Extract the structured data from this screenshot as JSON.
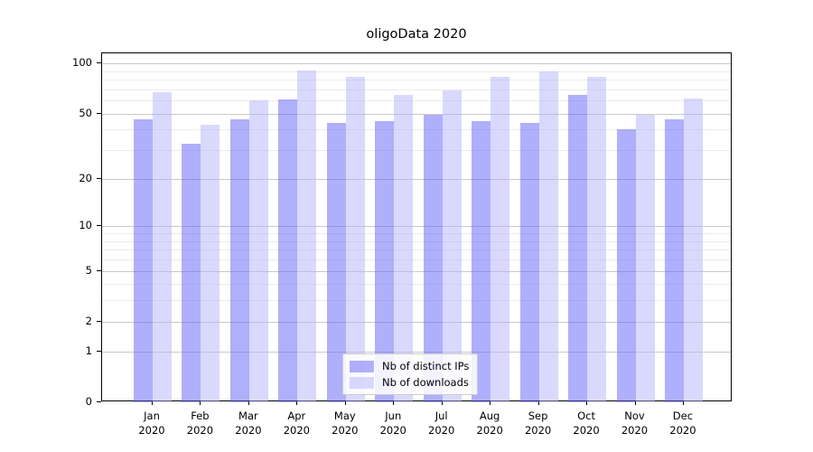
{
  "chart_data": {
    "type": "bar",
    "title": "oligoData 2020",
    "x_categories": [
      {
        "month": "Jan",
        "year": "2020"
      },
      {
        "month": "Feb",
        "year": "2020"
      },
      {
        "month": "Mar",
        "year": "2020"
      },
      {
        "month": "Apr",
        "year": "2020"
      },
      {
        "month": "May",
        "year": "2020"
      },
      {
        "month": "Jun",
        "year": "2020"
      },
      {
        "month": "Jul",
        "year": "2020"
      },
      {
        "month": "Aug",
        "year": "2020"
      },
      {
        "month": "Sep",
        "year": "2020"
      },
      {
        "month": "Oct",
        "year": "2020"
      },
      {
        "month": "Nov",
        "year": "2020"
      },
      {
        "month": "Dec",
        "year": "2020"
      }
    ],
    "series": [
      {
        "name": "Nb of distinct IPs",
        "color": "rgba(95,95,250,0.5)",
        "hex_on_white": "#aaaafa",
        "values": [
          46,
          33,
          46,
          61,
          44,
          45,
          49,
          45,
          44,
          65,
          40,
          46
        ]
      },
      {
        "name": "Nb of downloads",
        "color": "rgba(180,180,252,0.5)",
        "hex_on_white": "#dadafd",
        "values": [
          67,
          43,
          60,
          91,
          83,
          65,
          69,
          83,
          90,
          83,
          49,
          62
        ]
      }
    ],
    "y_axis": {
      "scale": "log1p",
      "major_ticks": [
        0,
        1,
        2,
        5,
        10,
        20,
        50,
        100
      ],
      "minor_gridlines": [
        3,
        4,
        6,
        7,
        8,
        9,
        30,
        40,
        60,
        70,
        80,
        90
      ],
      "top_value": 115
    },
    "grid": "on",
    "legend": {
      "position": "lower center",
      "entries": [
        "Nb of distinct IPs",
        "Nb of downloads"
      ]
    },
    "colors": {
      "major_grid": "#c9c9c9",
      "minor_grid": "#ebebeb",
      "spine": "#000000",
      "background": "#ffffff"
    }
  }
}
